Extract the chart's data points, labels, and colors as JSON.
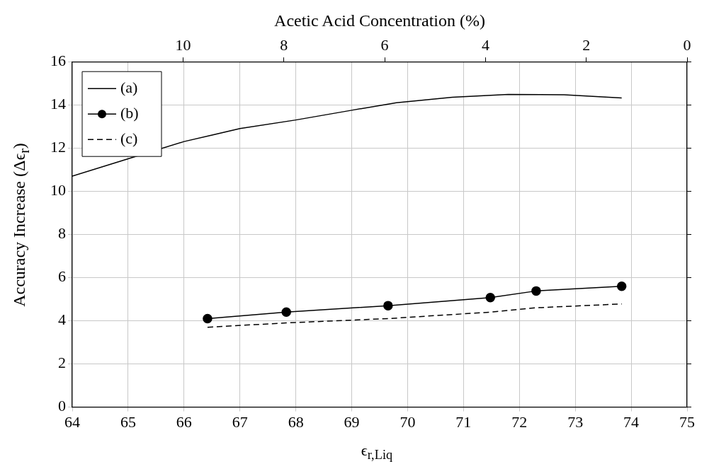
{
  "chart_data": {
    "type": "line",
    "xlabel": "ϵ$_{r,Liq}$",
    "ylabel": "Accuracy Increase (Δϵ$_{r}$)",
    "x2label": "Acetic Acid Concentration (%)",
    "xlim": [
      64,
      75
    ],
    "xticks": [
      64,
      65,
      66,
      67,
      68,
      69,
      70,
      71,
      72,
      73,
      74,
      75
    ],
    "x2lim": [
      12.2,
      0
    ],
    "x2ticks": [
      10,
      8,
      6,
      4,
      2,
      0
    ],
    "ylim": [
      0,
      16
    ],
    "yticks": [
      0,
      2,
      4,
      6,
      8,
      10,
      12,
      14,
      16
    ],
    "grid": true,
    "legend": "top left",
    "series": [
      {
        "name": "(a)",
        "color": "#000000",
        "marker": "none",
        "line_style": "solid",
        "x": [
          64,
          65,
          66,
          66.5,
          67,
          68,
          69,
          69.8,
          70.8,
          71.8,
          72.8,
          73.83
        ],
        "values": [
          10.7,
          11.5,
          12.3,
          12.6,
          12.9,
          13.3,
          13.75,
          14.1,
          14.35,
          14.48,
          14.47,
          14.32
        ]
      },
      {
        "name": "(b)",
        "color": "#000000",
        "marker": "circle",
        "line_style": "solid",
        "x": [
          66.42,
          67.83,
          69.65,
          71.48,
          72.3,
          73.83
        ],
        "values": [
          4.1,
          4.4,
          4.7,
          5.07,
          5.38,
          5.6
        ]
      },
      {
        "name": "(c)",
        "color": "#000000",
        "marker": "none",
        "line_style": "dashed",
        "x": [
          66.42,
          67.83,
          69.65,
          71.48,
          72.3,
          73.83
        ],
        "values": [
          3.7,
          3.9,
          4.1,
          4.4,
          4.6,
          4.78
        ]
      }
    ]
  }
}
